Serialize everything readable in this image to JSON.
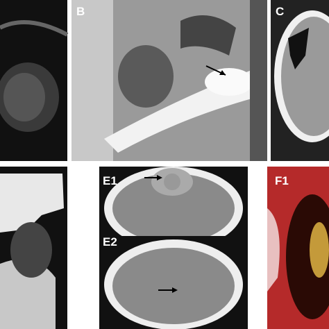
{
  "panels": {
    "b": {
      "label": "B"
    },
    "c": {
      "label": "C"
    },
    "e1": {
      "label": "E1"
    },
    "e2": {
      "label": "E2"
    },
    "f1": {
      "label": "F1"
    }
  }
}
